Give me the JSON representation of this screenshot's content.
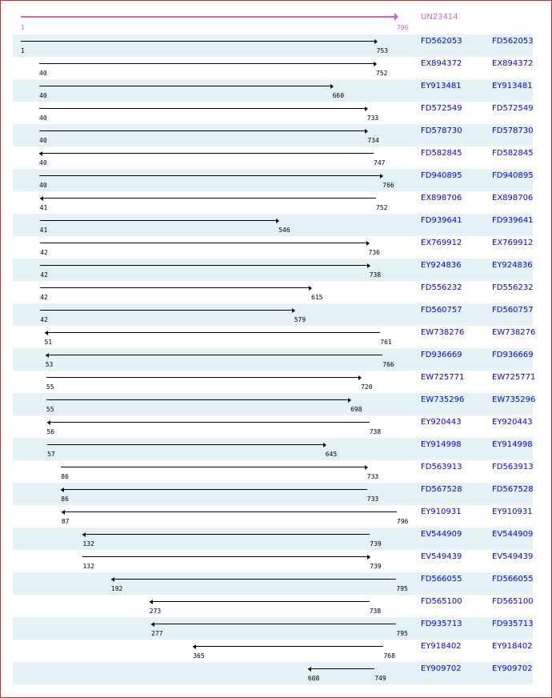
{
  "query": {
    "id": "UN23414",
    "start": 1,
    "end": 796,
    "color": "#cc66cc"
  },
  "hits": [
    {
      "id": "FD562053",
      "start": 1,
      "end": 753,
      "dir": "right"
    },
    {
      "id": "EX894372",
      "start": 40,
      "end": 752,
      "dir": "right"
    },
    {
      "id": "EY913481",
      "start": 40,
      "end": 660,
      "dir": "right"
    },
    {
      "id": "FD572549",
      "start": 40,
      "end": 733,
      "dir": "right"
    },
    {
      "id": "FD578730",
      "start": 40,
      "end": 734,
      "dir": "right"
    },
    {
      "id": "FD582845",
      "start": 40,
      "end": 747,
      "dir": "left"
    },
    {
      "id": "FD940895",
      "start": 40,
      "end": 766,
      "dir": "right"
    },
    {
      "id": "EX898706",
      "start": 41,
      "end": 752,
      "dir": "left"
    },
    {
      "id": "FD939641",
      "start": 41,
      "end": 546,
      "dir": "right"
    },
    {
      "id": "EX769912",
      "start": 42,
      "end": 736,
      "dir": "right"
    },
    {
      "id": "EY924836",
      "start": 42,
      "end": 738,
      "dir": "right"
    },
    {
      "id": "FD556232",
      "start": 42,
      "end": 615,
      "dir": "right"
    },
    {
      "id": "FD560757",
      "start": 42,
      "end": 579,
      "dir": "right"
    },
    {
      "id": "EW738276",
      "start": 51,
      "end": 761,
      "dir": "left"
    },
    {
      "id": "FD936669",
      "start": 53,
      "end": 766,
      "dir": "left"
    },
    {
      "id": "EW725771",
      "start": 55,
      "end": 720,
      "dir": "right"
    },
    {
      "id": "EW735296",
      "start": 55,
      "end": 698,
      "dir": "right"
    },
    {
      "id": "EY920443",
      "start": 56,
      "end": 738,
      "dir": "left"
    },
    {
      "id": "EY914998",
      "start": 57,
      "end": 645,
      "dir": "right"
    },
    {
      "id": "FD563913",
      "start": 86,
      "end": 733,
      "dir": "right"
    },
    {
      "id": "FD567528",
      "start": 86,
      "end": 733,
      "dir": "left"
    },
    {
      "id": "EY910931",
      "start": 87,
      "end": 796,
      "dir": "left"
    },
    {
      "id": "EV544909",
      "start": 132,
      "end": 739,
      "dir": "left"
    },
    {
      "id": "EV549439",
      "start": 132,
      "end": 739,
      "dir": "right"
    },
    {
      "id": "FD566055",
      "start": 192,
      "end": 795,
      "dir": "left"
    },
    {
      "id": "FD565100",
      "start": 273,
      "end": 738,
      "dir": "left"
    },
    {
      "id": "FD935713",
      "start": 277,
      "end": 795,
      "dir": "left"
    },
    {
      "id": "EY918402",
      "start": 365,
      "end": 768,
      "dir": "left"
    },
    {
      "id": "EY909702",
      "start": 608,
      "end": 749,
      "dir": "left"
    }
  ]
}
